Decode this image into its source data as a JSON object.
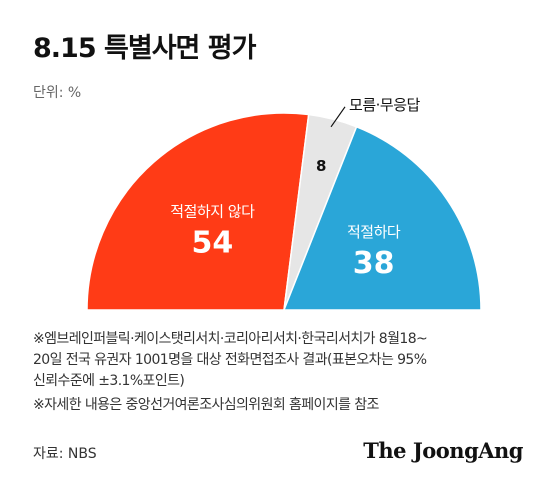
{
  "title": "8.15 특별사면 평가",
  "unit_label": "단위: %",
  "chart_data": {
    "type": "pie",
    "shape": "half-donut",
    "slices": [
      {
        "label": "적절하지 않다",
        "value": 54,
        "color": "#ff3b16"
      },
      {
        "label": "모름·무응답",
        "value": 8,
        "color": "#e6e6e6"
      },
      {
        "label": "적절하다",
        "value": 38,
        "color": "#2aa6d8"
      }
    ]
  },
  "notes": [
    "※엠브레인퍼블릭·케이스탯리서치·코리아리서치·한국리서치가 8월18~\n20일 전국 유권자 1001명을 대상 전화면접조사 결과(표본오차는 95%\n신뢰수준에 ±3.1%포인트)",
    "※자세한 내용은 중앙선거여론조사심의위원회 홈페이지를 참조"
  ],
  "source": "자료: NBS",
  "brand": "The JoongAng"
}
